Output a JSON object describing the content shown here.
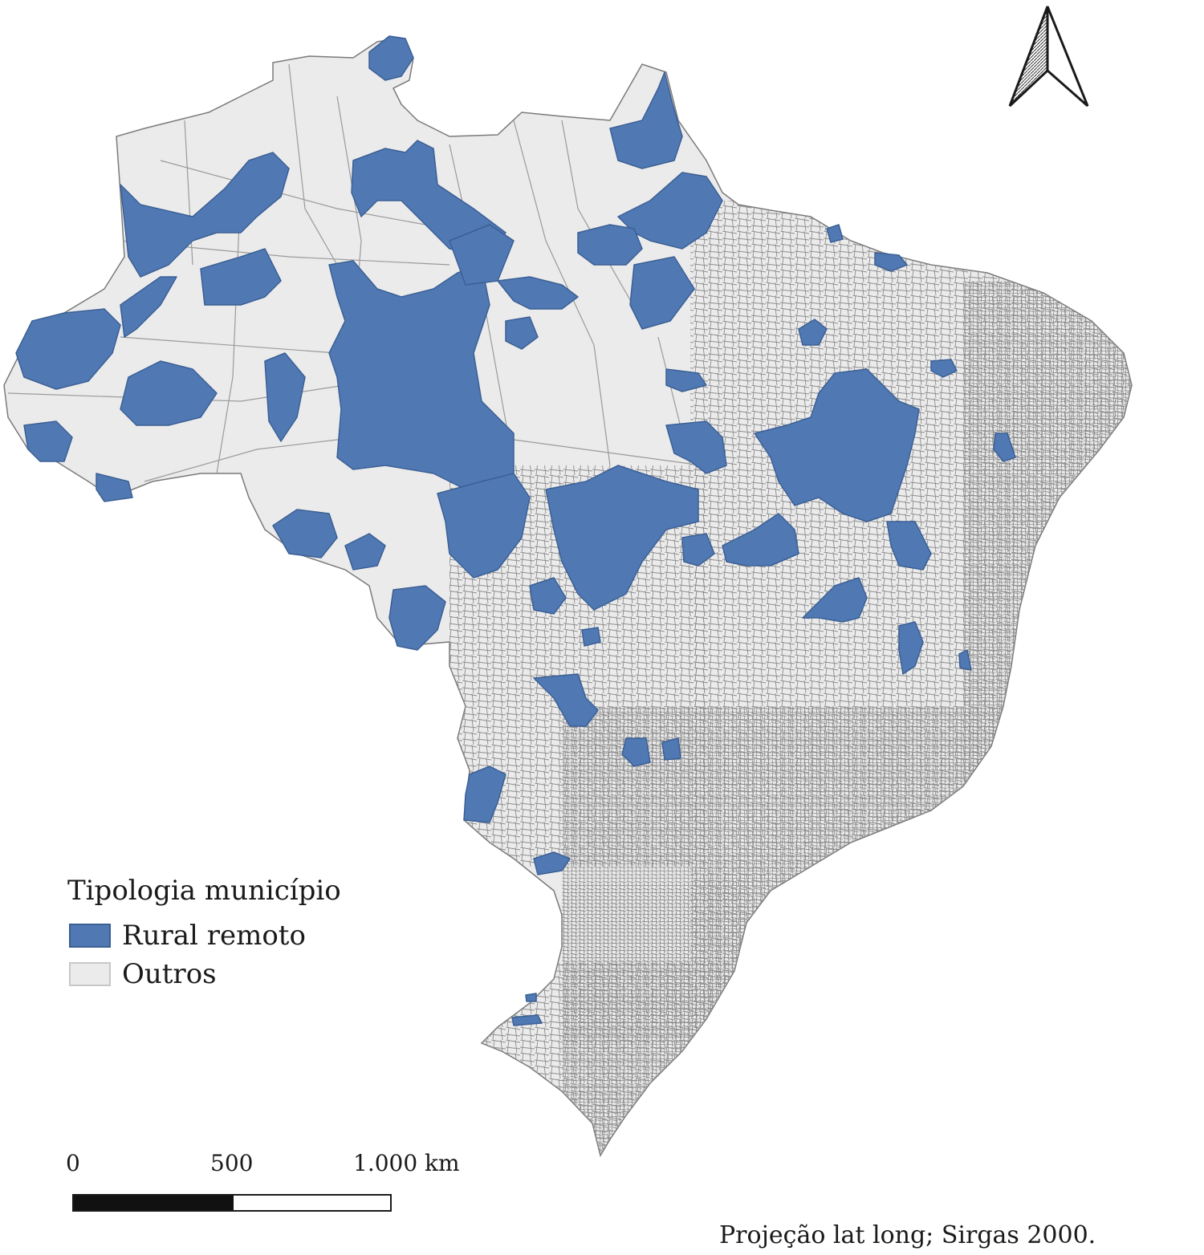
{
  "legend": {
    "title": "Tipologia município",
    "items": [
      {
        "label": "Rural remoto",
        "color": "#5079b4"
      },
      {
        "label": "Outros",
        "color": "#ebebeb"
      }
    ]
  },
  "scale_bar": {
    "labels": [
      "0",
      "500",
      "1.000 km"
    ]
  },
  "footnote": "Projeção lat long; Sirgas 2000.",
  "map": {
    "country_fill": "#ebebeb",
    "border_color": "#8c8c8c",
    "highlight_color": "#5079b4",
    "highlight_border": "#3b5f94",
    "north_arrow_icon": "north-arrow-icon"
  }
}
